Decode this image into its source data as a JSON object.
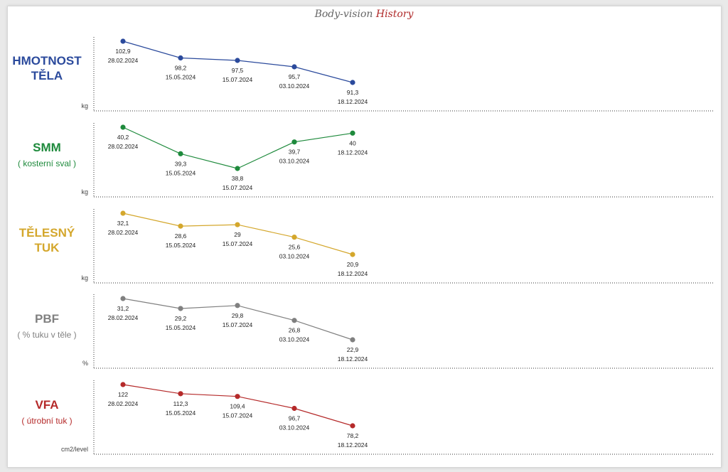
{
  "header": {
    "title_part1": "Body-vision",
    "title_part2": "History"
  },
  "chart_data": [
    {
      "type": "line",
      "title": "HMOTNOST TĚLA",
      "subtitle": "",
      "unit": "kg",
      "color": "#2b4a9c",
      "x": [
        "28.02.2024",
        "15.05.2024",
        "15.07.2024",
        "03.10.2024",
        "18.12.2024"
      ],
      "values": [
        102.9,
        98.2,
        97.5,
        95.7,
        91.3
      ],
      "value_labels": [
        "102,9",
        "98,2",
        "97,5",
        "95,7",
        "91,3"
      ]
    },
    {
      "type": "line",
      "title": "SMM",
      "subtitle": "( kosterní sval )",
      "unit": "kg",
      "color": "#1e8a3c",
      "x": [
        "28.02.2024",
        "15.05.2024",
        "15.07.2024",
        "03.10.2024",
        "18.12.2024"
      ],
      "values": [
        40.2,
        39.3,
        38.8,
        39.7,
        40
      ],
      "value_labels": [
        "40,2",
        "39,3",
        "38,8",
        "39,7",
        "40"
      ]
    },
    {
      "type": "line",
      "title": "TĚLESNÝ TUK",
      "subtitle": "",
      "unit": "kg",
      "color": "#d4a72c",
      "x": [
        "28.02.2024",
        "15.05.2024",
        "15.07.2024",
        "03.10.2024",
        "18.12.2024"
      ],
      "values": [
        32.1,
        28.6,
        29,
        25.6,
        20.9
      ],
      "value_labels": [
        "32,1",
        "28,6",
        "29",
        "25,6",
        "20,9"
      ]
    },
    {
      "type": "line",
      "title": "PBF",
      "subtitle": "( % tuku v těle )",
      "unit": "%",
      "color": "#808080",
      "x": [
        "28.02.2024",
        "15.05.2024",
        "15.07.2024",
        "03.10.2024",
        "18.12.2024"
      ],
      "values": [
        31.2,
        29.2,
        29.8,
        26.8,
        22.9
      ],
      "value_labels": [
        "31,2",
        "29,2",
        "29,8",
        "26,8",
        "22,9"
      ]
    },
    {
      "type": "line",
      "title": "VFA",
      "subtitle": "( útrobní tuk )",
      "unit": "cm2/level",
      "color": "#b52a2a",
      "x": [
        "28.02.2024",
        "15.05.2024",
        "15.07.2024",
        "03.10.2024",
        "18.12.2024"
      ],
      "values": [
        122,
        112.3,
        109.4,
        96.7,
        78.2
      ],
      "value_labels": [
        "122",
        "112,3",
        "109,4",
        "96,7",
        "78,2"
      ]
    }
  ]
}
